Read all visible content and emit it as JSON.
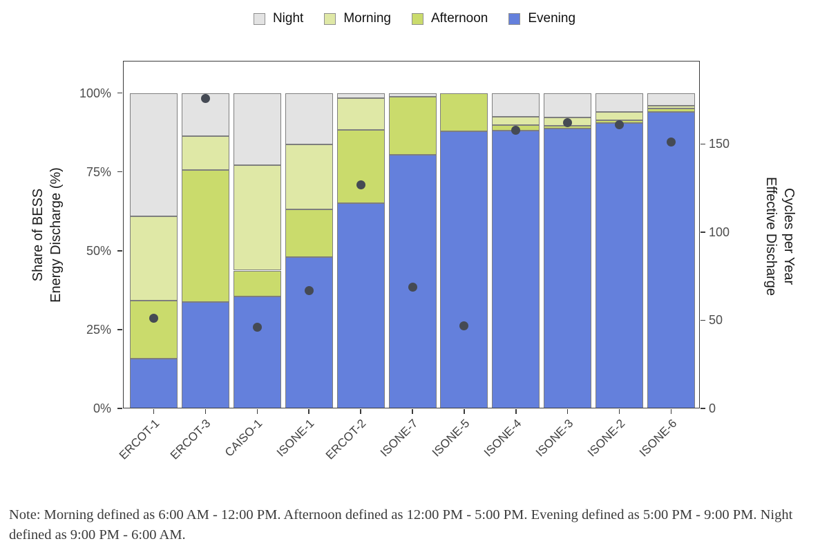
{
  "legend": {
    "items": [
      {
        "label": "Night",
        "color": "#e3e3e3"
      },
      {
        "label": "Morning",
        "color": "#dfe8a6"
      },
      {
        "label": "Afternoon",
        "color": "#cadb6c"
      },
      {
        "label": "Evening",
        "color": "#6480dc"
      }
    ]
  },
  "chart_data": {
    "type": "bar",
    "stacked": true,
    "categories": [
      "ERCOT-1",
      "ERCOT-3",
      "CAISO-1",
      "ISONE-1",
      "ERCOT-2",
      "ISONE-7",
      "ISONE-5",
      "ISONE-4",
      "ISONE-3",
      "ISONE-2",
      "ISONE-6"
    ],
    "series": [
      {
        "name": "Night",
        "color": "#e3e3e3",
        "values": [
          39.0,
          13.8,
          23.0,
          16.4,
          1.6,
          1.1,
          0.0,
          7.6,
          7.8,
          6.0,
          4.1
        ]
      },
      {
        "name": "Morning",
        "color": "#dfe8a6",
        "values": [
          26.9,
          10.6,
          33.3,
          20.6,
          10.2,
          0.0,
          0.0,
          2.6,
          2.5,
          2.7,
          0.8
        ]
      },
      {
        "name": "Afternoon",
        "color": "#cadb6c",
        "values": [
          18.4,
          41.9,
          8.2,
          15.0,
          23.2,
          18.4,
          12.2,
          1.8,
          0.9,
          0.9,
          1.2
        ]
      },
      {
        "name": "Evening",
        "color": "#6480dc",
        "values": [
          15.7,
          33.7,
          35.5,
          48.0,
          65.0,
          80.5,
          87.8,
          88.0,
          88.8,
          90.4,
          93.9
        ]
      }
    ],
    "dot_series": {
      "name": "Effective Discharge Cycles per Year",
      "color": "#454a54",
      "values": [
        51,
        176,
        46,
        67,
        127,
        69,
        47,
        158,
        162,
        161,
        151
      ]
    },
    "y_left": {
      "title_lines": [
        "Share of BESS",
        "Energy Discharge (%)"
      ],
      "tick_values": [
        0,
        25,
        50,
        75,
        100
      ],
      "tick_labels": [
        "0%",
        "25%",
        "50%",
        "75%",
        "100%"
      ],
      "lim": [
        0,
        100
      ]
    },
    "y_right": {
      "title_lines": [
        "Effective Discharge",
        "Cycles per Year"
      ],
      "tick_values": [
        0,
        50,
        100,
        150
      ],
      "tick_labels": [
        "0",
        "50",
        "100",
        "150"
      ],
      "lim": [
        0,
        179
      ]
    },
    "grid": false,
    "legend_position": "top"
  },
  "note": "Note: Morning defined as 6:00 AM - 12:00 PM. Afternoon defined as 12:00 PM - 5:00 PM. Evening defined as 5:00 PM - 9:00 PM. Night defined as 9:00 PM - 6:00 AM."
}
